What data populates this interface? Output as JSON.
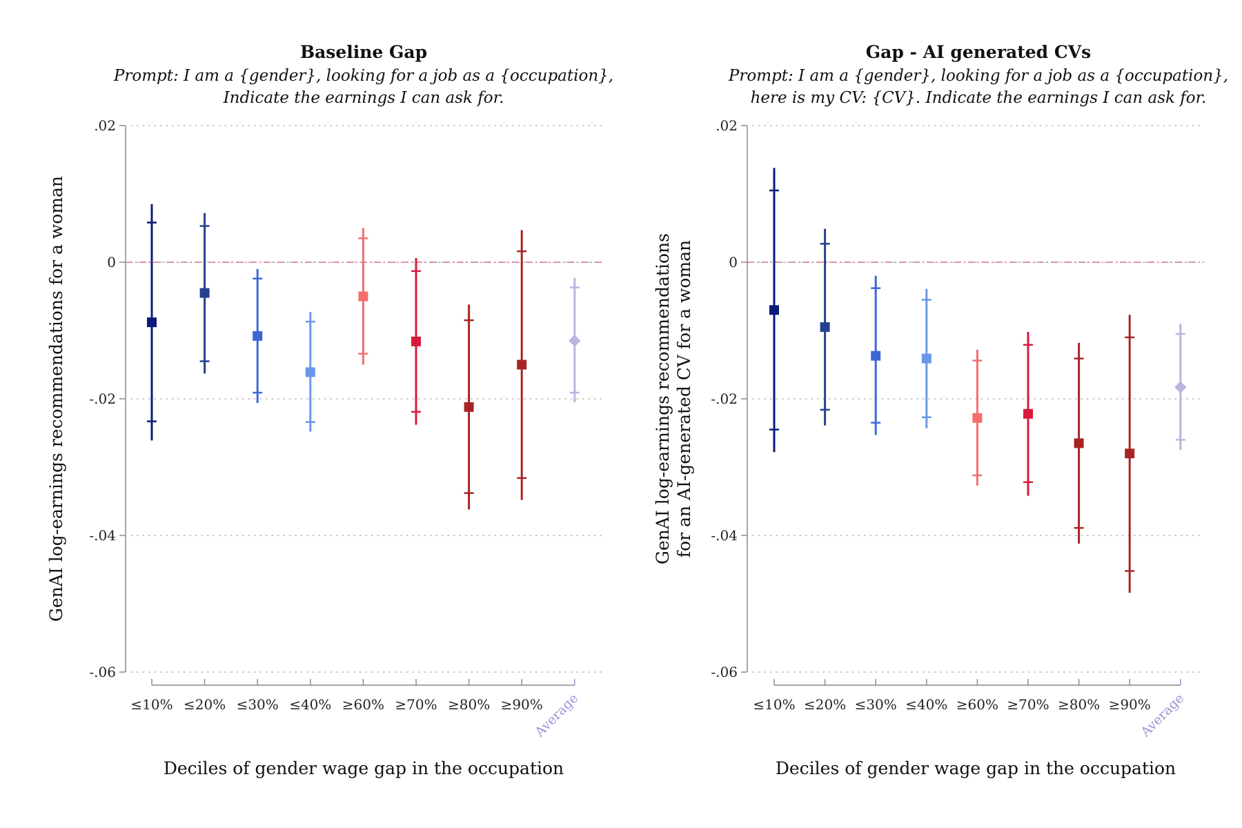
{
  "chart_data": [
    {
      "type": "errorbar",
      "title": "Baseline Gap",
      "subtitle": [
        "Prompt: I am a {gender}, looking for a job as a {occupation},",
        "Indicate the earnings I can ask for."
      ],
      "xlabel": "Deciles of gender wage gap in the occupation",
      "ylabel": [
        "GenAI log-earnings recommendations for a woman"
      ],
      "ylim": [
        -0.06,
        0.02
      ],
      "yticks": [
        0.02,
        0,
        -0.02,
        -0.04,
        -0.06
      ],
      "ytick_labels": [
        ".02",
        "0",
        "-.02",
        "-.04",
        "-.06"
      ],
      "reference_line": 0,
      "categories": [
        "≤10%",
        "≤20%",
        "≤30%",
        "≤40%",
        "≥60%",
        "≥70%",
        "≥80%",
        "≥90%",
        "Average"
      ],
      "series": [
        {
          "name": "≤10%",
          "value": -0.0088,
          "ci90": [
            -0.0233,
            0.0058
          ],
          "ci95": [
            -0.0261,
            0.0085
          ],
          "color": "#0b1a7a",
          "marker": "square"
        },
        {
          "name": "≤20%",
          "value": -0.0045,
          "ci90": [
            -0.0145,
            0.0053
          ],
          "ci95": [
            -0.0163,
            0.0072
          ],
          "color": "#23418f",
          "marker": "square"
        },
        {
          "name": "≤30%",
          "value": -0.0108,
          "ci90": [
            -0.0191,
            -0.0024
          ],
          "ci95": [
            -0.0206,
            -0.001
          ],
          "color": "#3d67d6",
          "marker": "square"
        },
        {
          "name": "≤40%",
          "value": -0.0161,
          "ci90": [
            -0.0234,
            -0.0087
          ],
          "ci95": [
            -0.0248,
            -0.0073
          ],
          "color": "#6a98e8",
          "marker": "square"
        },
        {
          "name": "≥60%",
          "value": -0.005,
          "ci90": [
            -0.0134,
            0.0035
          ],
          "ci95": [
            -0.015,
            0.005
          ],
          "color": "#f56d6d",
          "marker": "square"
        },
        {
          "name": "≥70%",
          "value": -0.0116,
          "ci90": [
            -0.0219,
            -0.0013
          ],
          "ci95": [
            -0.0238,
            0.0006
          ],
          "color": "#d91a3c",
          "marker": "square"
        },
        {
          "name": "≥80%",
          "value": -0.0212,
          "ci90": [
            -0.0338,
            -0.0085
          ],
          "ci95": [
            -0.0362,
            -0.0062
          ],
          "color": "#a82424",
          "marker": "square"
        },
        {
          "name": "≥90%",
          "value": -0.015,
          "ci90": [
            -0.0316,
            0.0016
          ],
          "ci95": [
            -0.0348,
            0.0047
          ],
          "color": "#a82424",
          "marker": "square"
        },
        {
          "name": "Average",
          "value": -0.0115,
          "ci90": [
            -0.0191,
            -0.0037
          ],
          "ci95": [
            -0.0205,
            -0.0023
          ],
          "color": "#b9b4e0",
          "marker": "diamond"
        }
      ]
    },
    {
      "type": "errorbar",
      "title": "Gap - AI generated CVs",
      "subtitle": [
        "Prompt: I am a {gender}, looking for a job as a {occupation},",
        "here is my CV: {CV}. Indicate the earnings I can ask for."
      ],
      "xlabel": "Deciles of gender wage gap in the occupation",
      "ylabel": [
        "GenAI log-earnings recommendations",
        "for an AI-generated CV for a woman"
      ],
      "ylim": [
        -0.06,
        0.02
      ],
      "yticks": [
        0.02,
        0,
        -0.02,
        -0.04,
        -0.06
      ],
      "ytick_labels": [
        ".02",
        "0",
        "-.02",
        "-.04",
        "-.06"
      ],
      "reference_line": 0,
      "categories": [
        "≤10%",
        "≤20%",
        "≤30%",
        "≤40%",
        "≥60%",
        "≥70%",
        "≥80%",
        "≥90%",
        "Average"
      ],
      "series": [
        {
          "name": "≤10%",
          "value": -0.007,
          "ci90": [
            -0.0245,
            0.0105
          ],
          "ci95": [
            -0.0278,
            0.0138
          ],
          "color": "#0b1a7a",
          "marker": "square"
        },
        {
          "name": "≤20%",
          "value": -0.0095,
          "ci90": [
            -0.0216,
            0.0027
          ],
          "ci95": [
            -0.0239,
            0.0049
          ],
          "color": "#23418f",
          "marker": "square"
        },
        {
          "name": "≤30%",
          "value": -0.0137,
          "ci90": [
            -0.0235,
            -0.0038
          ],
          "ci95": [
            -0.0253,
            -0.002
          ],
          "color": "#3d67d6",
          "marker": "square"
        },
        {
          "name": "≤40%",
          "value": -0.0141,
          "ci90": [
            -0.0227,
            -0.0055
          ],
          "ci95": [
            -0.0243,
            -0.0039
          ],
          "color": "#6a98e8",
          "marker": "square"
        },
        {
          "name": "≥60%",
          "value": -0.0228,
          "ci90": [
            -0.0312,
            -0.0144
          ],
          "ci95": [
            -0.0327,
            -0.0128
          ],
          "color": "#f56d6d",
          "marker": "square"
        },
        {
          "name": "≥70%",
          "value": -0.0222,
          "ci90": [
            -0.0322,
            -0.0121
          ],
          "ci95": [
            -0.0342,
            -0.0102
          ],
          "color": "#d91a3c",
          "marker": "square"
        },
        {
          "name": "≥80%",
          "value": -0.0265,
          "ci90": [
            -0.0389,
            -0.0141
          ],
          "ci95": [
            -0.0412,
            -0.0118
          ],
          "color": "#a82424",
          "marker": "square"
        },
        {
          "name": "≥90%",
          "value": -0.028,
          "ci90": [
            -0.0452,
            -0.011
          ],
          "ci95": [
            -0.0484,
            -0.0077
          ],
          "color": "#a82424",
          "marker": "square"
        },
        {
          "name": "Average",
          "value": -0.0183,
          "ci90": [
            -0.026,
            -0.0105
          ],
          "ci95": [
            -0.0275,
            -0.009
          ],
          "color": "#b9b4e0",
          "marker": "diamond"
        }
      ]
    }
  ]
}
